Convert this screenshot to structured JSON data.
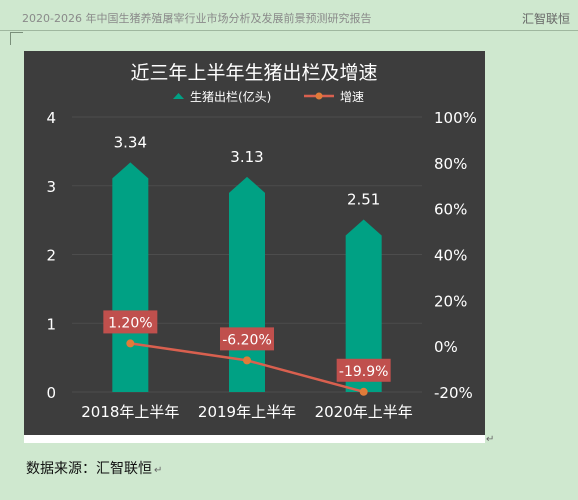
{
  "document": {
    "header_title": "2020-2026 年中国生猪养殖屠宰行业市场分析及发展前景预测研究报告",
    "header_brand": "汇智联恒",
    "source_text": "数据来源：汇智联恒"
  },
  "chart_data": {
    "type": "bar",
    "title": "近三年上半年生猪出栏及增速",
    "categories": [
      "2018年上半年",
      "2019年上半年",
      "2020年上半年"
    ],
    "series": [
      {
        "name": "生猪出栏(亿头)",
        "type": "bar",
        "axis": "left",
        "values": [
          3.34,
          3.13,
          2.51
        ],
        "labels": [
          "3.34",
          "3.13",
          "2.51"
        ],
        "color": "#00a184"
      },
      {
        "name": "增速",
        "type": "line",
        "axis": "right",
        "values": [
          1.2,
          -6.2,
          -19.9
        ],
        "labels": [
          "1.20%",
          "-6.20%",
          "-19.9%"
        ],
        "color": "#d9604f"
      }
    ],
    "y_left": {
      "min": 0,
      "max": 4,
      "ticks": [
        "0",
        "1",
        "2",
        "3",
        "4"
      ]
    },
    "y_right": {
      "min": -20,
      "max": 100,
      "ticks": [
        "-20%",
        "0%",
        "20%",
        "40%",
        "60%",
        "80%",
        "100%"
      ]
    },
    "legend_position": "top",
    "background": "#3d3d3d",
    "label_box_color": "#c0504d"
  }
}
